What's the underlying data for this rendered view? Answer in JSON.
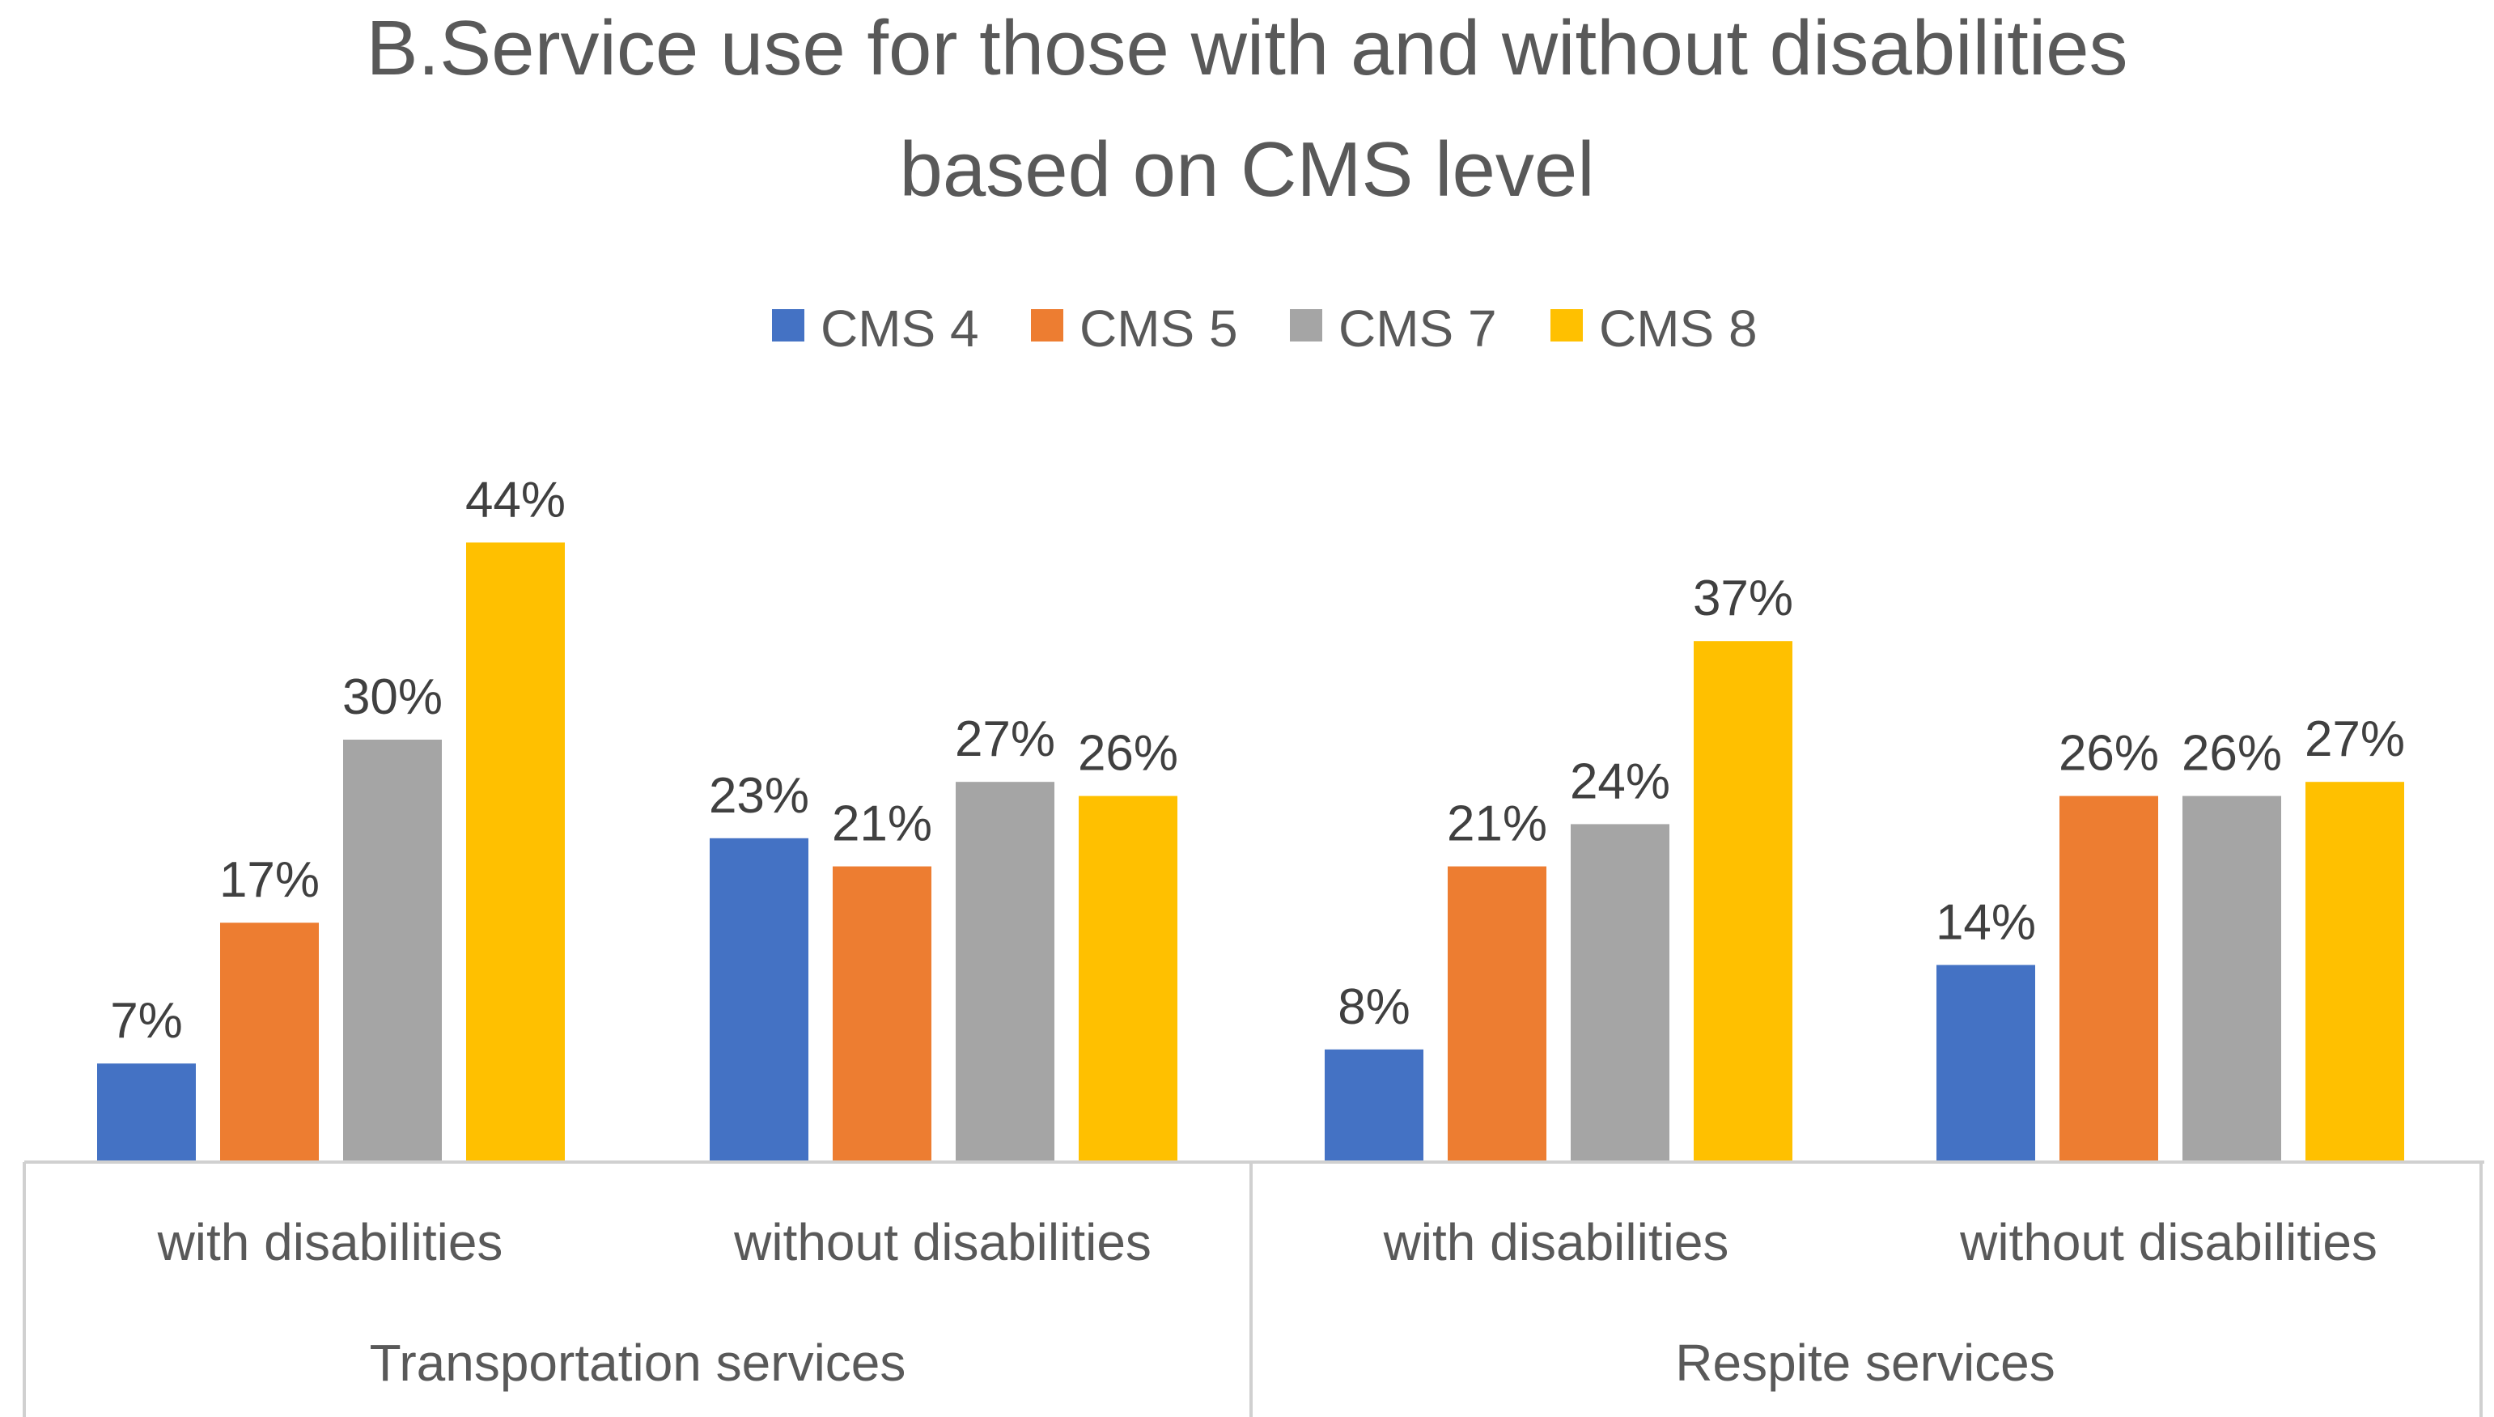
{
  "chart_data": {
    "type": "bar",
    "title_lines": [
      "B.Service use for those with and without disabilities",
      "based on CMS level"
    ],
    "groups": [
      {
        "label": "Transportation services",
        "categories": [
          "with disabilities",
          "without disabilities"
        ]
      },
      {
        "label": "Respite services",
        "categories": [
          "with disabilities",
          "without disabilities"
        ]
      }
    ],
    "categories": [
      "with disabilities",
      "without disabilities",
      "with disabilities",
      "without disabilities"
    ],
    "series": [
      {
        "name": "CMS 4",
        "color": "#4472C4",
        "values": [
          7,
          23,
          8,
          14
        ],
        "labels": [
          "7%",
          "23%",
          "8%",
          "14%"
        ]
      },
      {
        "name": "CMS 5",
        "color": "#ED7D31",
        "values": [
          17,
          21,
          21,
          26
        ],
        "labels": [
          "17%",
          "21%",
          "21%",
          "26%"
        ]
      },
      {
        "name": "CMS 7",
        "color": "#A5A5A5",
        "values": [
          30,
          27,
          24,
          26
        ],
        "labels": [
          "30%",
          "27%",
          "24%",
          "26%"
        ]
      },
      {
        "name": "CMS 8",
        "color": "#FFC000",
        "values": [
          44,
          26,
          37,
          27
        ],
        "labels": [
          "44%",
          "26%",
          "37%",
          "27%"
        ]
      }
    ],
    "value_unit": "%",
    "ylim": [
      0,
      50
    ],
    "legend_position": "top-center",
    "grid": false
  }
}
